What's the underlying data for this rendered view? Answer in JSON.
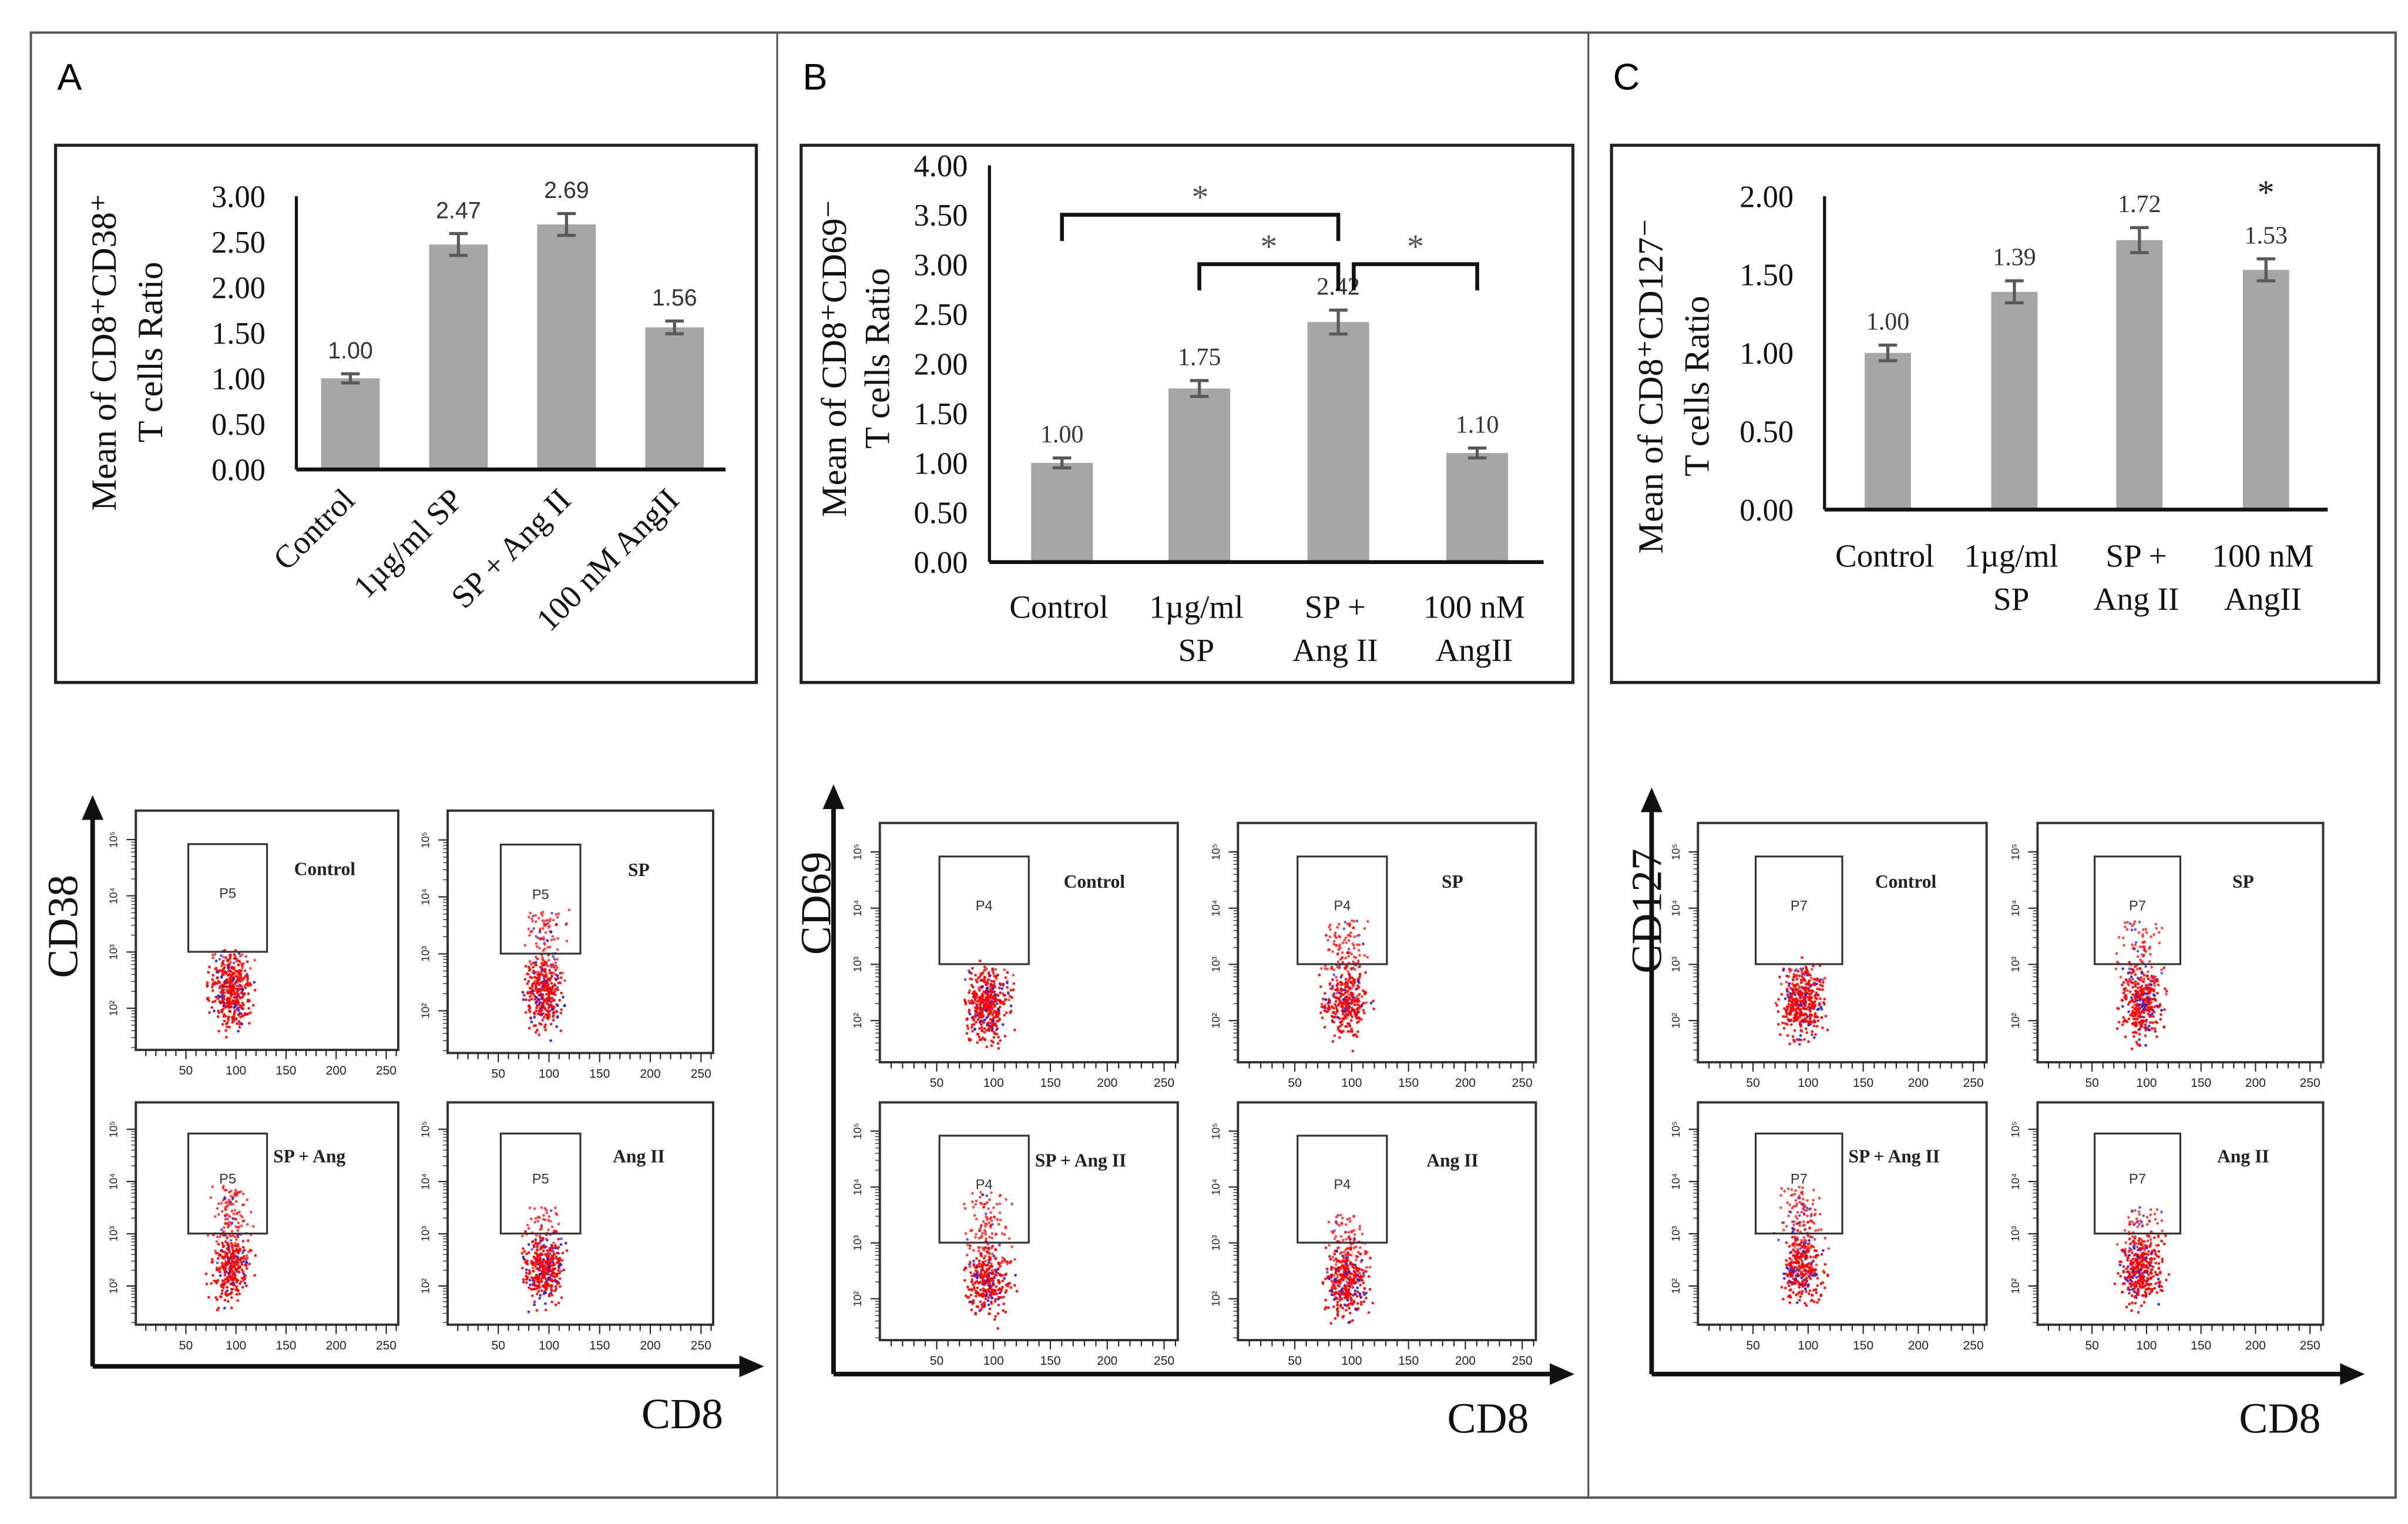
{
  "panels": [
    {
      "letter": "A"
    },
    {
      "letter": "B"
    },
    {
      "letter": "C"
    }
  ],
  "chart_data": [
    {
      "type": "bar",
      "panel": "A",
      "ylabel": [
        "Mean of CD8⁺CD38⁺",
        "T cells Ratio"
      ],
      "categories": [
        "Control",
        "1µg/ml SP",
        "SP + Ang II",
        "100 nM AngII"
      ],
      "category_lines": [
        [
          "Control"
        ],
        [
          "1µg/ml SP"
        ],
        [
          "SP + Ang II"
        ],
        [
          "100 nM AngII"
        ]
      ],
      "values": [
        1.0,
        2.47,
        2.69,
        1.56
      ],
      "value_labels": [
        "1.00",
        "2.47",
        "2.69",
        "1.56"
      ],
      "errors": [
        0.05,
        0.12,
        0.12,
        0.07
      ],
      "ylim": [
        0,
        3
      ],
      "yticks": [
        "0.00",
        "0.50",
        "1.00",
        "1.50",
        "2.00",
        "2.50",
        "3.00"
      ],
      "significance": [],
      "grid": false
    },
    {
      "type": "bar",
      "panel": "B",
      "ylabel": [
        "Mean of CD8⁺CD69⁻",
        "T cells Ratio"
      ],
      "categories": [
        "Control",
        "1µg/ml SP",
        "SP + Ang II",
        "100 nM AngII"
      ],
      "category_lines": [
        [
          "Control"
        ],
        [
          "1µg/ml",
          "SP"
        ],
        [
          "SP +",
          "Ang II"
        ],
        [
          "100 nM",
          "AngII"
        ]
      ],
      "values": [
        1.0,
        1.75,
        2.42,
        1.1
      ],
      "value_labels": [
        "1.00",
        "1.75",
        "2.42",
        "1.10"
      ],
      "errors": [
        0.05,
        0.08,
        0.12,
        0.05
      ],
      "ylim": [
        0,
        4
      ],
      "yticks": [
        "0.00",
        "0.50",
        "1.00",
        "1.50",
        "2.00",
        "2.50",
        "3.00",
        "3.50",
        "4.00"
      ],
      "significance": [
        {
          "from": 0,
          "to": 2,
          "mark": "*"
        },
        {
          "from": 1,
          "to": 2,
          "mark": "*"
        },
        {
          "from": 2,
          "to": 3,
          "mark": "*"
        }
      ],
      "grid": false
    },
    {
      "type": "bar",
      "panel": "C",
      "ylabel": [
        "Mean of CD8⁺CD127⁻",
        "T cells Ratio"
      ],
      "categories": [
        "Control",
        "1µg/ml SP",
        "SP + Ang II",
        "100 nM AngII"
      ],
      "category_lines": [
        [
          "Control"
        ],
        [
          "1µg/ml",
          "SP"
        ],
        [
          "SP +",
          "Ang II"
        ],
        [
          "100 nM",
          "AngII"
        ]
      ],
      "values": [
        1.0,
        1.39,
        1.72,
        1.53
      ],
      "value_labels": [
        "1.00",
        "1.39",
        "1.72",
        "1.53"
      ],
      "errors": [
        0.05,
        0.07,
        0.08,
        0.07
      ],
      "ylim": [
        0,
        2
      ],
      "yticks": [
        "0.00",
        "0.50",
        "1.00",
        "1.50",
        "2.00"
      ],
      "significance": [
        {
          "bar": 3,
          "mark": "*"
        }
      ],
      "grid": false
    }
  ],
  "flow": [
    {
      "panel": "A",
      "y_axis": "CD38",
      "x_axis": "CD8",
      "x_ticks": [
        "50",
        "100",
        "150",
        "200",
        "250"
      ],
      "y_ticks": [
        "10²",
        "10³",
        "10⁴",
        "10⁵"
      ],
      "plots": [
        {
          "condition": "Control",
          "gate": "P5"
        },
        {
          "condition": "SP",
          "gate": "P5"
        },
        {
          "condition": "SP + Ang",
          "gate": "P5"
        },
        {
          "condition": "Ang II",
          "gate": "P5"
        }
      ]
    },
    {
      "panel": "B",
      "y_axis": "CD69",
      "x_axis": "CD8",
      "x_ticks": [
        "50",
        "100",
        "150",
        "200",
        "250"
      ],
      "y_ticks": [
        "10²",
        "10³",
        "10⁴",
        "10⁵"
      ],
      "plots": [
        {
          "condition": "Control",
          "gate": "P4"
        },
        {
          "condition": "SP",
          "gate": "P4"
        },
        {
          "condition": "SP + Ang II",
          "gate": "P4"
        },
        {
          "condition": "Ang II",
          "gate": "P4"
        }
      ]
    },
    {
      "panel": "C",
      "y_axis": "CD127",
      "x_axis": "CD8",
      "x_ticks": [
        "50",
        "100",
        "150",
        "200",
        "250"
      ],
      "y_ticks": [
        "10²",
        "10³",
        "10⁴",
        "10⁵"
      ],
      "plots": [
        {
          "condition": "Control",
          "gate": "P7"
        },
        {
          "condition": "SP",
          "gate": "P7"
        },
        {
          "condition": "SP + Ang II",
          "gate": "P7"
        },
        {
          "condition": "Ang II",
          "gate": "P7"
        }
      ]
    }
  ],
  "colors": {
    "bar": "#a6a6a6",
    "error": "#595959",
    "event_red": "#ff0000",
    "event_blue": "#2020e0",
    "frame": "#333333"
  }
}
